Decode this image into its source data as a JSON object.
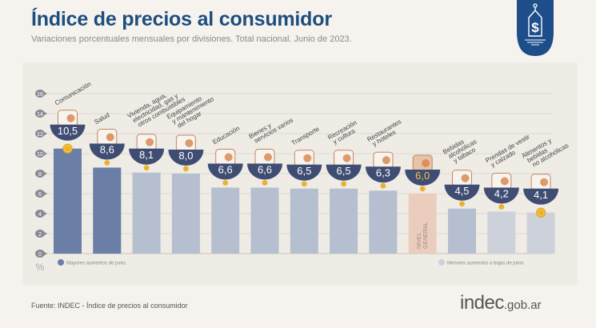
{
  "header": {
    "title": "Índice de precios al consumidor",
    "subtitle": "Variaciones porcentuales mensuales por divisiones. Total nacional. Junio de 2023."
  },
  "logo": {
    "icon": "price-tag-dollar-icon",
    "color": "#1d4e8a"
  },
  "footer": {
    "source": "Fuente: INDEC - Índice de precios al consumidor",
    "brand_main": "indec",
    "brand_suffix": ".gob.ar"
  },
  "colors": {
    "high": "#6a7ea6",
    "low": "#b5bfd0",
    "lowest": "#cdd2da",
    "general": "#ebcdbe",
    "badge": "#3f4d73",
    "dot": "#e8b22a",
    "grid": "#dcd8d2",
    "tick_bubble": "#8a8a94"
  },
  "chart_data": {
    "type": "bar",
    "title": "Índice de precios al consumidor",
    "subtitle": "Variaciones porcentuales mensuales por divisiones. Total nacional. Junio de 2023.",
    "xlabel": "",
    "ylabel": "%",
    "ylim": [
      0,
      16
    ],
    "yticks": [
      0,
      2,
      4,
      6,
      8,
      10,
      12,
      14,
      16
    ],
    "grid": true,
    "categories": [
      "Comunicación",
      "Salud",
      "Vivienda, agua, electricidad, gas y otros combustibles",
      "Equipamiento y mantenimiento del hogar",
      "Educación",
      "Bienes y servicios varios",
      "Transporte",
      "Recreación y cultura",
      "Restaurantes y hoteles",
      "Nivel general",
      "Bebidas alcohólicas y tabaco",
      "Prendas de vestir y calzado",
      "Alimentos y bebidas no alcohólicas"
    ],
    "category_lines": [
      [
        "Comunicación"
      ],
      [
        "Salud"
      ],
      [
        "Vivienda, agua,",
        "electricidad, gas y",
        "otros combustibles"
      ],
      [
        "Equipamiento",
        "y mantenimiento",
        "del hogar"
      ],
      [
        "Educación"
      ],
      [
        "Bienes y",
        "servicios varios"
      ],
      [
        "Transporte"
      ],
      [
        "Recreación",
        "y cultura"
      ],
      [
        "Restaurantes",
        "y hoteles"
      ],
      [],
      [
        "Bebidas",
        "alcohólicas",
        "y tabaco"
      ],
      [
        "Prendas de vestir",
        "y calzado"
      ],
      [
        "Alimentos y",
        "bebidas",
        "no alcohólicas"
      ]
    ],
    "values": [
      10.5,
      8.6,
      8.1,
      8.0,
      6.6,
      6.6,
      6.5,
      6.5,
      6.3,
      6.0,
      4.5,
      4.2,
      4.1
    ],
    "value_labels": [
      "10,5",
      "8,6",
      "8,1",
      "8,0",
      "6,6",
      "6,6",
      "6,5",
      "6,5",
      "6,3",
      "6,0",
      "4,5",
      "4,2",
      "4,1"
    ],
    "groups": [
      "high",
      "high",
      "low",
      "low",
      "low",
      "low",
      "low",
      "low",
      "low",
      "general",
      "low",
      "lowest",
      "lowest"
    ],
    "icons": [
      "smartphone-icon",
      "first-aid-kit-icon",
      "lightbulb-icon",
      "washing-machine-icon",
      "notebook-pencil-icon",
      "comb-icon",
      "bus-sube-card-icon",
      "sun-umbrella-icon",
      "plate-cutlery-icon",
      "shopping-basket-icon",
      "wine-cigarette-icon",
      "tshirt-shoe-icon",
      "bread-chicken-icon"
    ],
    "general_label_lines": [
      "NIVEL",
      "GENERAL"
    ],
    "legend": [
      {
        "label": "Mayores aumentos de junio.",
        "group": "high",
        "position": "bottom-left"
      },
      {
        "label": "Menores aumentos o bajas de junio.",
        "group": "lowest",
        "position": "bottom-right"
      }
    ]
  }
}
